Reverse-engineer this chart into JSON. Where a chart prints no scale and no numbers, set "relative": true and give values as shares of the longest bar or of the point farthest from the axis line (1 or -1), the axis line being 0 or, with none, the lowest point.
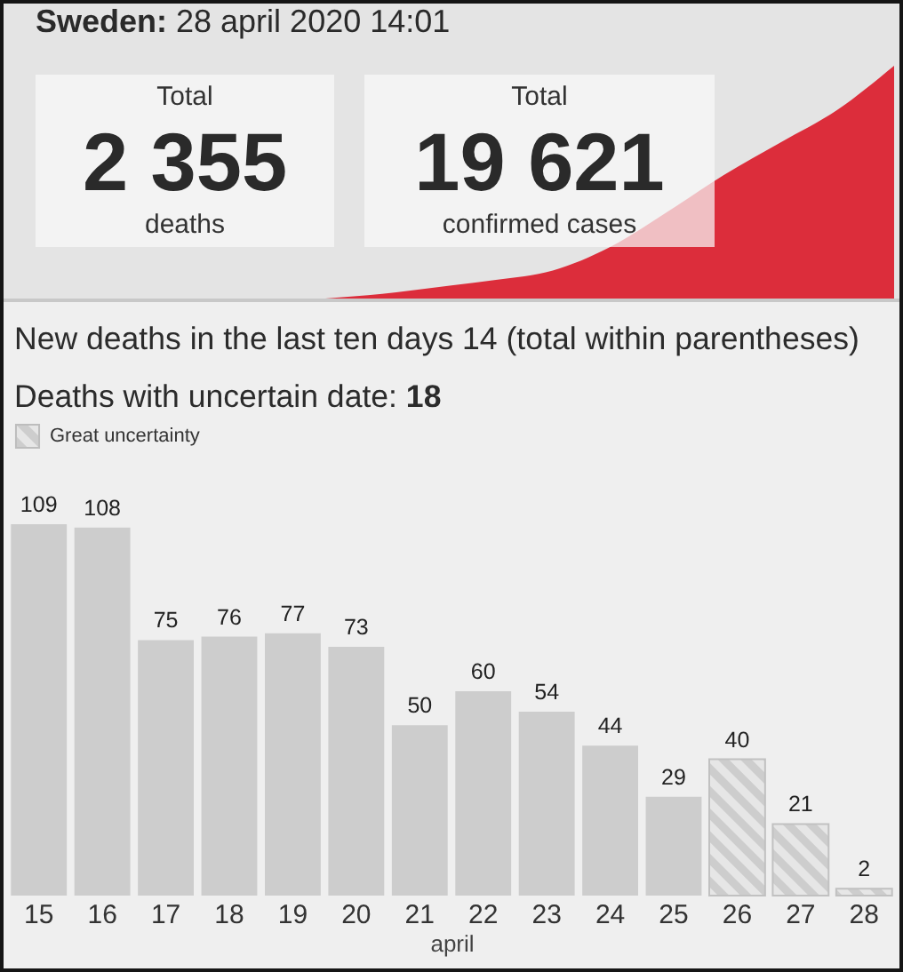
{
  "chart_data": [
    {
      "type": "other",
      "title": "Sweden: 28 april 2020 14:01",
      "annotations": [
        "Total",
        "2 355",
        "deaths",
        "Total",
        "19 621",
        "confirmed cases"
      ]
    },
    {
      "type": "area",
      "relative": true,
      "categories": [
        null,
        null,
        null,
        null,
        null,
        null,
        null,
        null,
        null,
        null,
        null
      ],
      "values": [
        0,
        0.02,
        0.05,
        0.08,
        0.12,
        0.22,
        0.37,
        0.53,
        0.67,
        0.81,
        1
      ],
      "color": "#dc2d3b"
    },
    {
      "type": "bar",
      "title": "New deaths in the last ten days 14 (total within parentheses)",
      "subtitle": "Deaths with uncertain date: 18",
      "xlabel": "april",
      "categories": [
        "15",
        "16",
        "17",
        "18",
        "19",
        "20",
        "21",
        "22",
        "23",
        "24",
        "25",
        "26",
        "27",
        "28"
      ],
      "series": [
        {
          "color": "#cdcdcd",
          "values": [
            109,
            108,
            75,
            76,
            77,
            73,
            50,
            60,
            54,
            44,
            29,
            null,
            null,
            null
          ]
        },
        {
          "name": "Great uncertainty",
          "color": "#cdcdcd",
          "values": [
            null,
            null,
            null,
            null,
            null,
            null,
            null,
            null,
            null,
            null,
            null,
            40,
            21,
            2
          ]
        }
      ],
      "data_labels": true,
      "legend": "top left",
      "tick_labels": "x"
    }
  ]
}
